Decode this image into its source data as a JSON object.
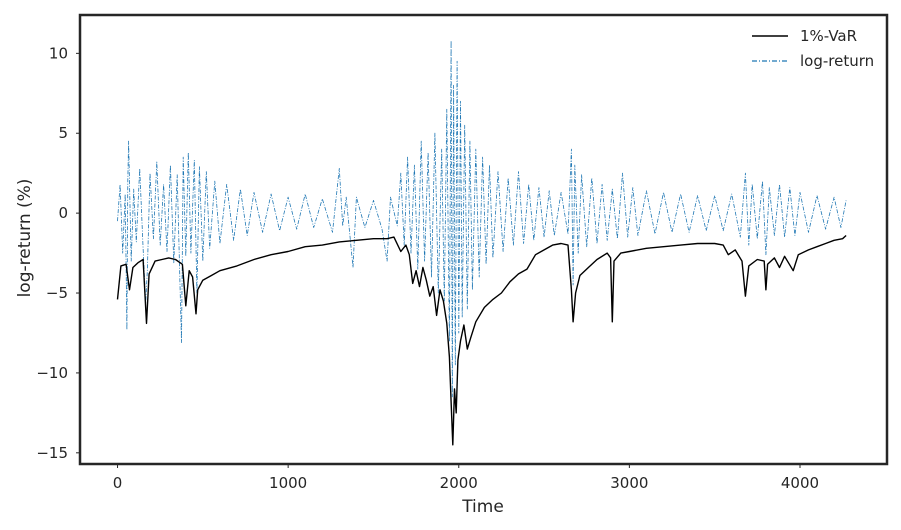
{
  "chart_data": {
    "type": "line",
    "xlabel": "Time",
    "ylabel": "log-return (%)",
    "xlim": [
      -220,
      4510
    ],
    "ylim": [
      -15.7,
      12.4
    ],
    "x_ticks": [
      0,
      1000,
      2000,
      3000,
      4000
    ],
    "y_ticks": [
      10,
      5,
      0,
      -5,
      -10,
      -15
    ],
    "x_tick_labels": [
      "0",
      "1000",
      "2000",
      "3000",
      "4000"
    ],
    "y_tick_labels": [
      "10",
      "5",
      "0",
      "−5",
      "−10",
      "−15"
    ],
    "grid": false,
    "legend_position": "upper right",
    "series": [
      {
        "name": "1%-VaR",
        "color": "#000000",
        "style": "solid",
        "points": [
          [
            0,
            -5.4
          ],
          [
            20,
            -3.3
          ],
          [
            50,
            -3.2
          ],
          [
            70,
            -4.8
          ],
          [
            90,
            -3.4
          ],
          [
            120,
            -3.1
          ],
          [
            150,
            -2.9
          ],
          [
            170,
            -6.9
          ],
          [
            185,
            -3.8
          ],
          [
            220,
            -3.0
          ],
          [
            260,
            -2.9
          ],
          [
            300,
            -2.8
          ],
          [
            340,
            -2.9
          ],
          [
            380,
            -3.2
          ],
          [
            400,
            -5.8
          ],
          [
            420,
            -3.6
          ],
          [
            440,
            -4.0
          ],
          [
            460,
            -6.3
          ],
          [
            470,
            -4.8
          ],
          [
            500,
            -4.2
          ],
          [
            550,
            -3.9
          ],
          [
            600,
            -3.6
          ],
          [
            700,
            -3.3
          ],
          [
            800,
            -2.9
          ],
          [
            900,
            -2.6
          ],
          [
            1000,
            -2.4
          ],
          [
            1100,
            -2.1
          ],
          [
            1200,
            -2.0
          ],
          [
            1300,
            -1.8
          ],
          [
            1400,
            -1.7
          ],
          [
            1500,
            -1.6
          ],
          [
            1580,
            -1.6
          ],
          [
            1620,
            -1.5
          ],
          [
            1660,
            -2.4
          ],
          [
            1690,
            -2.0
          ],
          [
            1710,
            -2.6
          ],
          [
            1730,
            -4.4
          ],
          [
            1750,
            -3.6
          ],
          [
            1770,
            -4.6
          ],
          [
            1790,
            -3.4
          ],
          [
            1810,
            -4.2
          ],
          [
            1830,
            -5.2
          ],
          [
            1850,
            -4.6
          ],
          [
            1870,
            -6.4
          ],
          [
            1890,
            -4.8
          ],
          [
            1910,
            -5.5
          ],
          [
            1930,
            -6.9
          ],
          [
            1945,
            -9.0
          ],
          [
            1955,
            -11.8
          ],
          [
            1965,
            -14.5
          ],
          [
            1975,
            -11.0
          ],
          [
            1985,
            -12.5
          ],
          [
            1995,
            -9.2
          ],
          [
            2010,
            -8.0
          ],
          [
            2030,
            -7.0
          ],
          [
            2050,
            -8.5
          ],
          [
            2070,
            -7.8
          ],
          [
            2100,
            -6.8
          ],
          [
            2150,
            -5.9
          ],
          [
            2200,
            -5.4
          ],
          [
            2250,
            -5.0
          ],
          [
            2300,
            -4.3
          ],
          [
            2350,
            -3.8
          ],
          [
            2400,
            -3.5
          ],
          [
            2450,
            -2.6
          ],
          [
            2500,
            -2.3
          ],
          [
            2550,
            -2.0
          ],
          [
            2600,
            -1.9
          ],
          [
            2640,
            -2.0
          ],
          [
            2660,
            -4.8
          ],
          [
            2670,
            -6.8
          ],
          [
            2685,
            -5.0
          ],
          [
            2710,
            -3.9
          ],
          [
            2760,
            -3.4
          ],
          [
            2810,
            -2.9
          ],
          [
            2870,
            -2.5
          ],
          [
            2890,
            -2.8
          ],
          [
            2900,
            -6.8
          ],
          [
            2910,
            -3.0
          ],
          [
            2950,
            -2.5
          ],
          [
            3000,
            -2.4
          ],
          [
            3100,
            -2.2
          ],
          [
            3200,
            -2.1
          ],
          [
            3300,
            -2.0
          ],
          [
            3400,
            -1.9
          ],
          [
            3500,
            -1.9
          ],
          [
            3550,
            -2.0
          ],
          [
            3580,
            -2.6
          ],
          [
            3620,
            -2.3
          ],
          [
            3660,
            -3.0
          ],
          [
            3680,
            -5.2
          ],
          [
            3700,
            -3.3
          ],
          [
            3750,
            -2.9
          ],
          [
            3790,
            -3.0
          ],
          [
            3800,
            -4.8
          ],
          [
            3810,
            -3.2
          ],
          [
            3850,
            -2.8
          ],
          [
            3880,
            -3.4
          ],
          [
            3910,
            -2.7
          ],
          [
            3960,
            -3.6
          ],
          [
            3990,
            -2.6
          ],
          [
            4050,
            -2.3
          ],
          [
            4100,
            -2.1
          ],
          [
            4150,
            -1.9
          ],
          [
            4200,
            -1.7
          ],
          [
            4250,
            -1.6
          ],
          [
            4270,
            -1.4
          ]
        ]
      },
      {
        "name": "log-return",
        "color": "#1f77b4",
        "style": "dashdot",
        "points": [
          [
            0,
            -0.5
          ],
          [
            15,
            1.8
          ],
          [
            30,
            -2.5
          ],
          [
            45,
            1.2
          ],
          [
            55,
            -7.3
          ],
          [
            60,
            2.0
          ],
          [
            65,
            4.5
          ],
          [
            80,
            -3.0
          ],
          [
            95,
            1.5
          ],
          [
            110,
            -1.8
          ],
          [
            130,
            2.8
          ],
          [
            150,
            -2.2
          ],
          [
            165,
            -5.6
          ],
          [
            175,
            -3.5
          ],
          [
            190,
            2.5
          ],
          [
            210,
            -1.6
          ],
          [
            230,
            3.2
          ],
          [
            250,
            -2.0
          ],
          [
            270,
            1.8
          ],
          [
            290,
            -2.4
          ],
          [
            310,
            3.0
          ],
          [
            330,
            -3.1
          ],
          [
            350,
            2.4
          ],
          [
            365,
            -4.0
          ],
          [
            375,
            -8.1
          ],
          [
            385,
            3.5
          ],
          [
            400,
            -2.7
          ],
          [
            415,
            3.8
          ],
          [
            430,
            -2.5
          ],
          [
            450,
            3.3
          ],
          [
            465,
            -5.0
          ],
          [
            480,
            2.9
          ],
          [
            500,
            -3.0
          ],
          [
            520,
            2.6
          ],
          [
            540,
            -2.2
          ],
          [
            570,
            2.0
          ],
          [
            600,
            -1.9
          ],
          [
            640,
            1.8
          ],
          [
            680,
            -1.7
          ],
          [
            720,
            1.5
          ],
          [
            760,
            -1.4
          ],
          [
            800,
            1.3
          ],
          [
            850,
            -1.2
          ],
          [
            900,
            1.2
          ],
          [
            950,
            -1.1
          ],
          [
            1000,
            1.0
          ],
          [
            1050,
            -1.0
          ],
          [
            1100,
            1.2
          ],
          [
            1150,
            -0.9
          ],
          [
            1200,
            0.9
          ],
          [
            1260,
            -1.2
          ],
          [
            1300,
            2.8
          ],
          [
            1320,
            -0.8
          ],
          [
            1340,
            1.0
          ],
          [
            1380,
            -3.4
          ],
          [
            1400,
            1.0
          ],
          [
            1450,
            -0.9
          ],
          [
            1500,
            0.8
          ],
          [
            1550,
            -1.0
          ],
          [
            1580,
            -3.0
          ],
          [
            1600,
            1.0
          ],
          [
            1640,
            -0.8
          ],
          [
            1660,
            2.5
          ],
          [
            1680,
            -2.0
          ],
          [
            1700,
            3.5
          ],
          [
            1720,
            -2.5
          ],
          [
            1740,
            3.0
          ],
          [
            1760,
            -3.5
          ],
          [
            1780,
            4.5
          ],
          [
            1800,
            -3.0
          ],
          [
            1820,
            3.8
          ],
          [
            1840,
            -4.0
          ],
          [
            1860,
            5.0
          ],
          [
            1880,
            -5.0
          ],
          [
            1900,
            4.0
          ],
          [
            1915,
            -5.5
          ],
          [
            1930,
            6.5
          ],
          [
            1945,
            -8.0
          ],
          [
            1955,
            10.8
          ],
          [
            1962,
            -11.5
          ],
          [
            1970,
            8.0
          ],
          [
            1980,
            -9.5
          ],
          [
            1990,
            9.5
          ],
          [
            2000,
            -7.5
          ],
          [
            2010,
            7.0
          ],
          [
            2020,
            -6.5
          ],
          [
            2035,
            5.5
          ],
          [
            2050,
            -6.0
          ],
          [
            2065,
            4.5
          ],
          [
            2080,
            -4.8
          ],
          [
            2100,
            4.0
          ],
          [
            2120,
            -4.0
          ],
          [
            2140,
            3.5
          ],
          [
            2160,
            -3.2
          ],
          [
            2180,
            3.0
          ],
          [
            2200,
            -2.8
          ],
          [
            2230,
            2.6
          ],
          [
            2260,
            -2.4
          ],
          [
            2290,
            2.2
          ],
          [
            2320,
            -2.0
          ],
          [
            2350,
            2.6
          ],
          [
            2380,
            -1.9
          ],
          [
            2410,
            1.8
          ],
          [
            2440,
            -1.7
          ],
          [
            2470,
            1.6
          ],
          [
            2500,
            -1.5
          ],
          [
            2530,
            1.4
          ],
          [
            2560,
            -1.4
          ],
          [
            2600,
            1.3
          ],
          [
            2640,
            -1.3
          ],
          [
            2660,
            4.0
          ],
          [
            2670,
            -4.5
          ],
          [
            2680,
            3.0
          ],
          [
            2700,
            -2.5
          ],
          [
            2720,
            2.4
          ],
          [
            2750,
            -2.1
          ],
          [
            2780,
            2.2
          ],
          [
            2810,
            -1.9
          ],
          [
            2840,
            1.8
          ],
          [
            2870,
            -1.7
          ],
          [
            2900,
            1.5
          ],
          [
            2930,
            -1.6
          ],
          [
            2960,
            2.5
          ],
          [
            2990,
            -1.5
          ],
          [
            3020,
            1.6
          ],
          [
            3050,
            -1.4
          ],
          [
            3100,
            1.4
          ],
          [
            3150,
            -1.3
          ],
          [
            3200,
            1.3
          ],
          [
            3250,
            -1.2
          ],
          [
            3300,
            1.2
          ],
          [
            3350,
            -1.2
          ],
          [
            3400,
            1.1
          ],
          [
            3450,
            -1.1
          ],
          [
            3500,
            1.1
          ],
          [
            3550,
            -1.1
          ],
          [
            3600,
            1.2
          ],
          [
            3650,
            -1.5
          ],
          [
            3680,
            2.5
          ],
          [
            3700,
            -2.0
          ],
          [
            3720,
            1.8
          ],
          [
            3750,
            -1.6
          ],
          [
            3780,
            2.0
          ],
          [
            3800,
            -2.6
          ],
          [
            3820,
            1.6
          ],
          [
            3850,
            -1.4
          ],
          [
            3880,
            1.8
          ],
          [
            3910,
            -1.5
          ],
          [
            3940,
            1.6
          ],
          [
            3970,
            -1.4
          ],
          [
            4000,
            1.3
          ],
          [
            4050,
            -1.2
          ],
          [
            4100,
            1.1
          ],
          [
            4150,
            -1.0
          ],
          [
            4200,
            1.0
          ],
          [
            4240,
            -0.9
          ],
          [
            4270,
            0.8
          ]
        ]
      }
    ]
  }
}
